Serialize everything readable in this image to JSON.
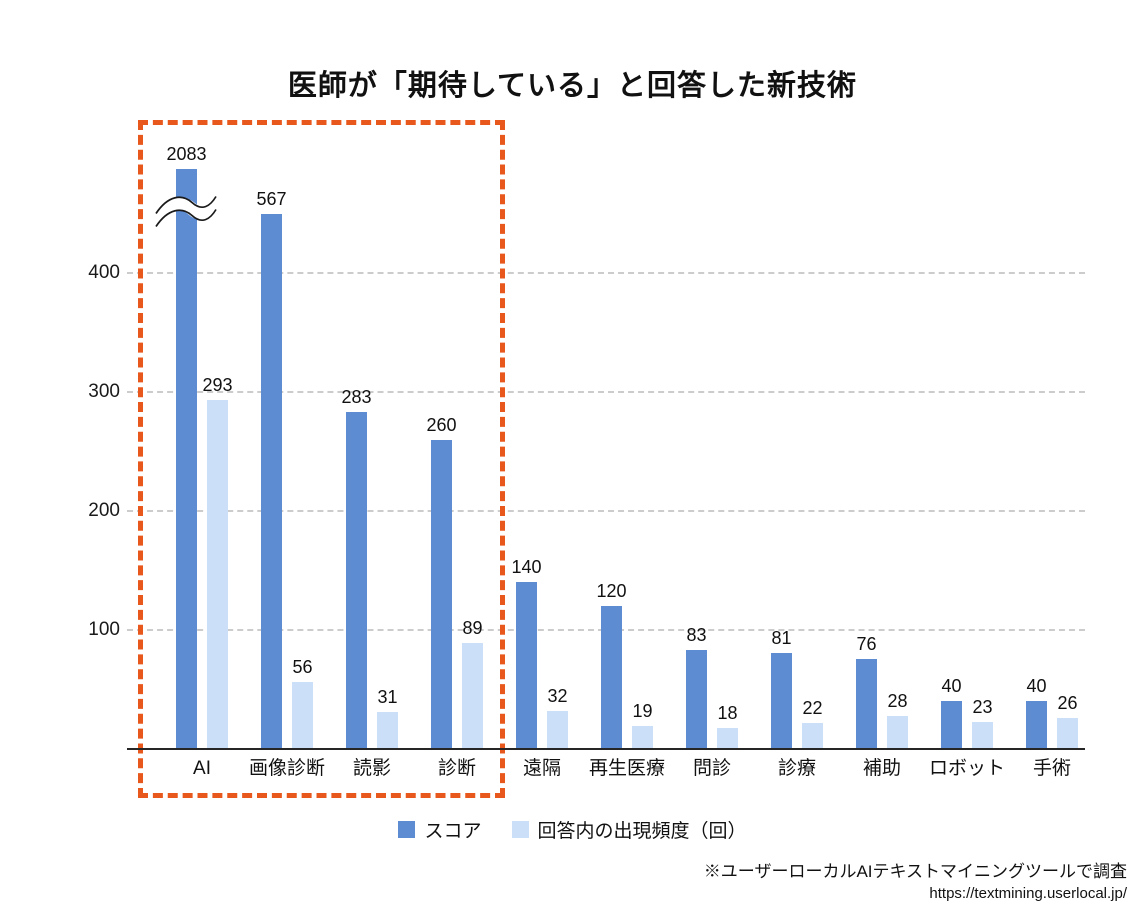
{
  "title": "医師が「期待している」と回答した新技術",
  "legend": {
    "items": [
      {
        "name": "スコア",
        "color": "#5E8CD2"
      },
      {
        "name": "回答内の出現頻度（回）",
        "color": "#CBDFF8"
      }
    ]
  },
  "footer": {
    "note": "※ユーザーローカルAIテキストマイニングツールで調査",
    "url": "https://textmining.userlocal.jp/"
  },
  "colors": {
    "score_bar": "#5E8CD2",
    "freq_bar": "#CBDFF8",
    "highlight_box": "#E8581D",
    "gridline": "#CCCCCC",
    "axis": "#262626",
    "text": "#111111"
  },
  "chart_data": {
    "type": "bar",
    "title": "医師が「期待している」と回答した新技術",
    "categories": [
      "AI",
      "画像診断",
      "読影",
      "診断",
      "遠隔",
      "再生医療",
      "問診",
      "診療",
      "補助",
      "ロボット",
      "手術"
    ],
    "series": [
      {
        "name": "スコア",
        "color": "#5E8CD2",
        "values": [
          2083,
          567,
          283,
          260,
          140,
          120,
          83,
          81,
          76,
          40,
          40
        ],
        "display_values": [
          487,
          450,
          283,
          260,
          140,
          120,
          83,
          81,
          76,
          40,
          40
        ]
      },
      {
        "name": "回答内の出現頻度（回）",
        "color": "#CBDFF8",
        "values": [
          293,
          56,
          31,
          89,
          32,
          19,
          18,
          22,
          28,
          23,
          26
        ],
        "display_values": [
          293,
          56,
          31,
          89,
          32,
          19,
          18,
          22,
          28,
          23,
          26
        ]
      }
    ],
    "xlabel": "",
    "ylabel": "",
    "yticks": [
      100,
      200,
      300,
      400
    ],
    "ylim": [
      0,
      500
    ],
    "grid": true,
    "legend_position": "bottom",
    "broken_axis": {
      "category": "AI",
      "note": "スコア bar for AI (2083) and 画像診断 (567) are drawn truncated; wave break symbol on AI bar"
    },
    "highlight_box": {
      "categories": [
        "AI",
        "画像診断",
        "読影",
        "診断"
      ],
      "style": "orange dashed rectangle"
    }
  }
}
